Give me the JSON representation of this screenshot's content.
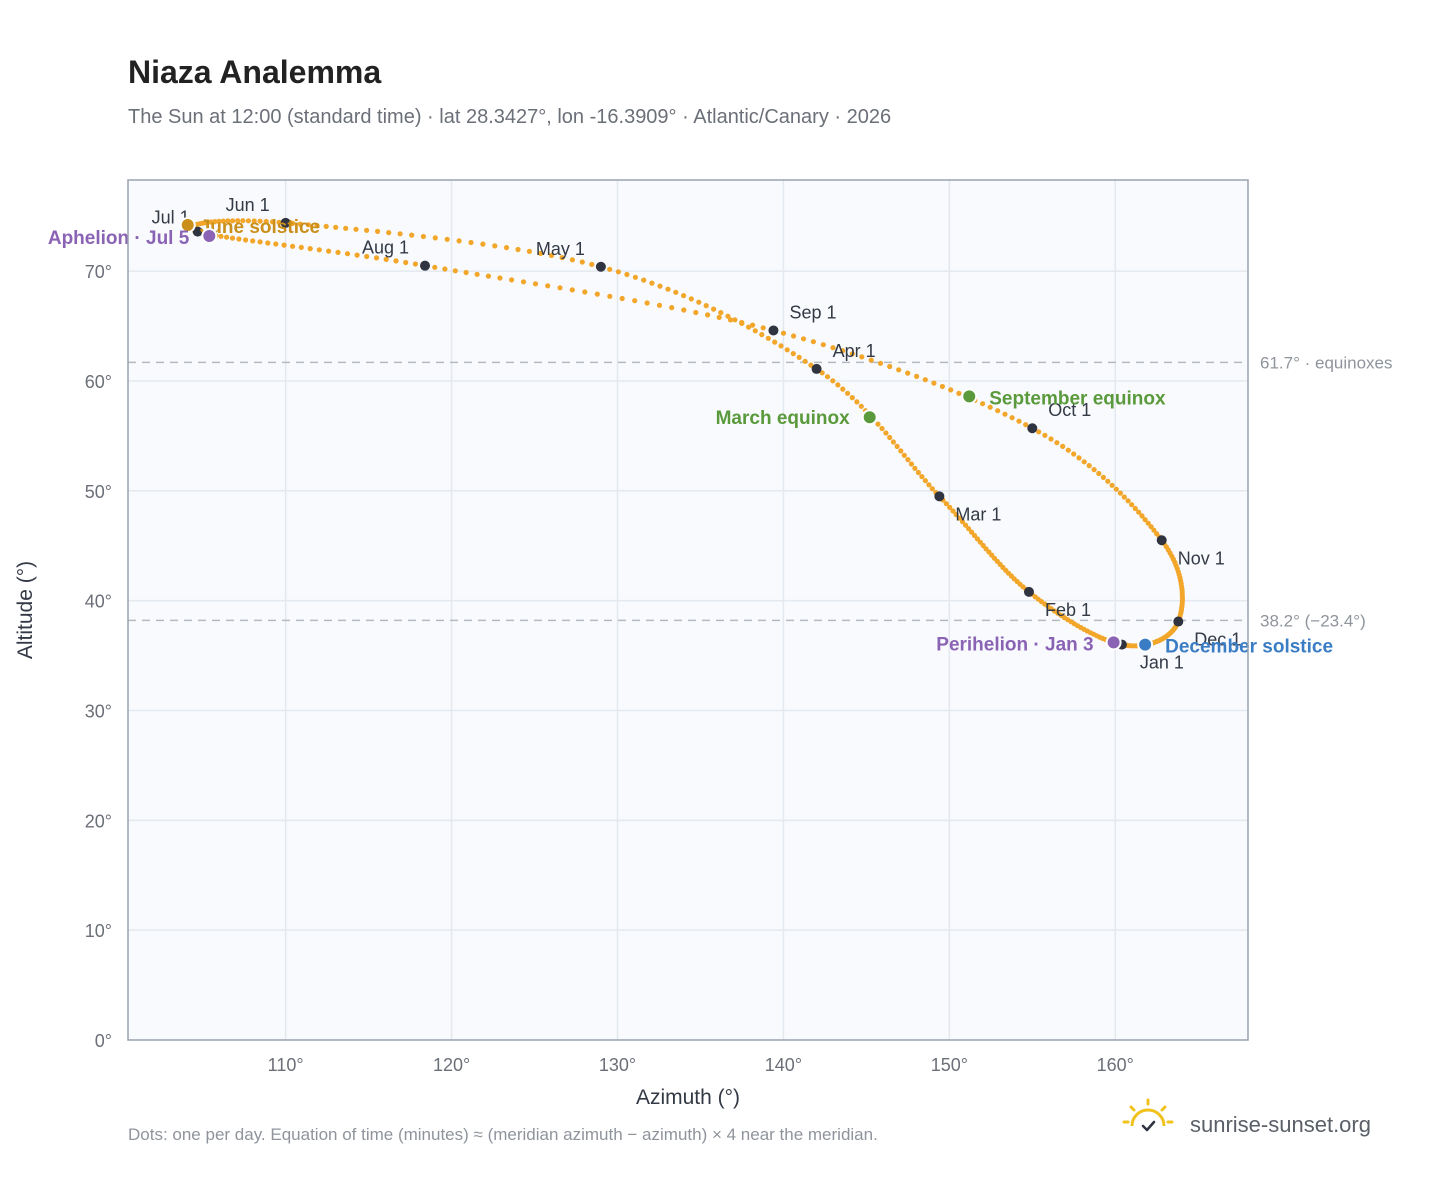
{
  "page": {
    "title": "Niaza Analemma",
    "subtitle": "The Sun at 12:00 (standard time) · lat 28.3427°, lon -16.3909° · Atlantic/Canary · 2026",
    "footnote": "Dots: one per day. Equation of time (minutes) ≈ (meridian azimuth − azimuth) × 4 near the meridian.",
    "brand": "sunrise-sunset.org",
    "brand_icon": "sun-check-icon"
  },
  "colors": {
    "curve": "#f2a62a",
    "month_marker": "#2f3440",
    "june_solstice": "#c98f18",
    "december_solstice": "#3b7dc4",
    "equinox": "#5a9a3c",
    "apsis": "#8a63b5",
    "plot_background": "#f8fafd",
    "grid": "#e4e9ef",
    "axis_frame": "#9aa3af",
    "reference_line": "#b5bac2"
  },
  "chart_data": {
    "type": "scatter",
    "xlabel": "Azimuth (°)",
    "ylabel": "Altitude (°)",
    "xlim": [
      100.5,
      168
    ],
    "ylim": [
      0,
      78.3
    ],
    "xticks": [
      110,
      120,
      130,
      140,
      150,
      160
    ],
    "yticks": [
      0,
      10,
      20,
      30,
      40,
      50,
      60,
      70
    ],
    "xtick_labels": [
      "110°",
      "120°",
      "130°",
      "140°",
      "150°",
      "160°"
    ],
    "ytick_labels": [
      "0°",
      "10°",
      "20°",
      "30°",
      "40°",
      "50°",
      "60°",
      "70°"
    ],
    "grid": true,
    "reference_lines": [
      {
        "y": 61.7,
        "label": "61.7° · equinoxes"
      },
      {
        "y": 38.2,
        "label": "38.2° (−23.4°)"
      }
    ],
    "month_points": [
      {
        "label": "Jan 1",
        "azimuth": 160.4,
        "altitude": 36.0
      },
      {
        "label": "Feb 1",
        "azimuth": 154.8,
        "altitude": 40.8
      },
      {
        "label": "Mar 1",
        "azimuth": 149.4,
        "altitude": 49.5
      },
      {
        "label": "Apr 1",
        "azimuth": 142.0,
        "altitude": 61.1
      },
      {
        "label": "May 1",
        "azimuth": 129.0,
        "altitude": 70.4
      },
      {
        "label": "Jun 1",
        "azimuth": 110.0,
        "altitude": 74.4
      },
      {
        "label": "Jul 1",
        "azimuth": 104.7,
        "altitude": 73.6
      },
      {
        "label": "Aug 1",
        "azimuth": 118.4,
        "altitude": 70.5
      },
      {
        "label": "Sep 1",
        "azimuth": 139.4,
        "altitude": 64.6
      },
      {
        "label": "Oct 1",
        "azimuth": 155.0,
        "altitude": 55.7
      },
      {
        "label": "Nov 1",
        "azimuth": 162.8,
        "altitude": 45.5
      },
      {
        "label": "Dec 1",
        "azimuth": 163.8,
        "altitude": 38.1
      }
    ],
    "events": [
      {
        "label": "June solstice",
        "azimuth": 104.1,
        "altitude": 74.2,
        "color": "#c98f18"
      },
      {
        "label": "December solstice",
        "azimuth": 161.8,
        "altitude": 36.0,
        "color": "#3b7dc4"
      },
      {
        "label": "March equinox",
        "azimuth": 145.2,
        "altitude": 56.7,
        "color": "#5a9a3c"
      },
      {
        "label": "September equinox",
        "azimuth": 151.2,
        "altitude": 58.6,
        "color": "#5a9a3c"
      },
      {
        "label": "Perihelion · Jan 3",
        "azimuth": 159.9,
        "altitude": 36.2,
        "color": "#8a63b5"
      },
      {
        "label": "Aphelion · Jul 5",
        "azimuth": 105.4,
        "altitude": 73.2,
        "color": "#8a63b5"
      }
    ]
  }
}
